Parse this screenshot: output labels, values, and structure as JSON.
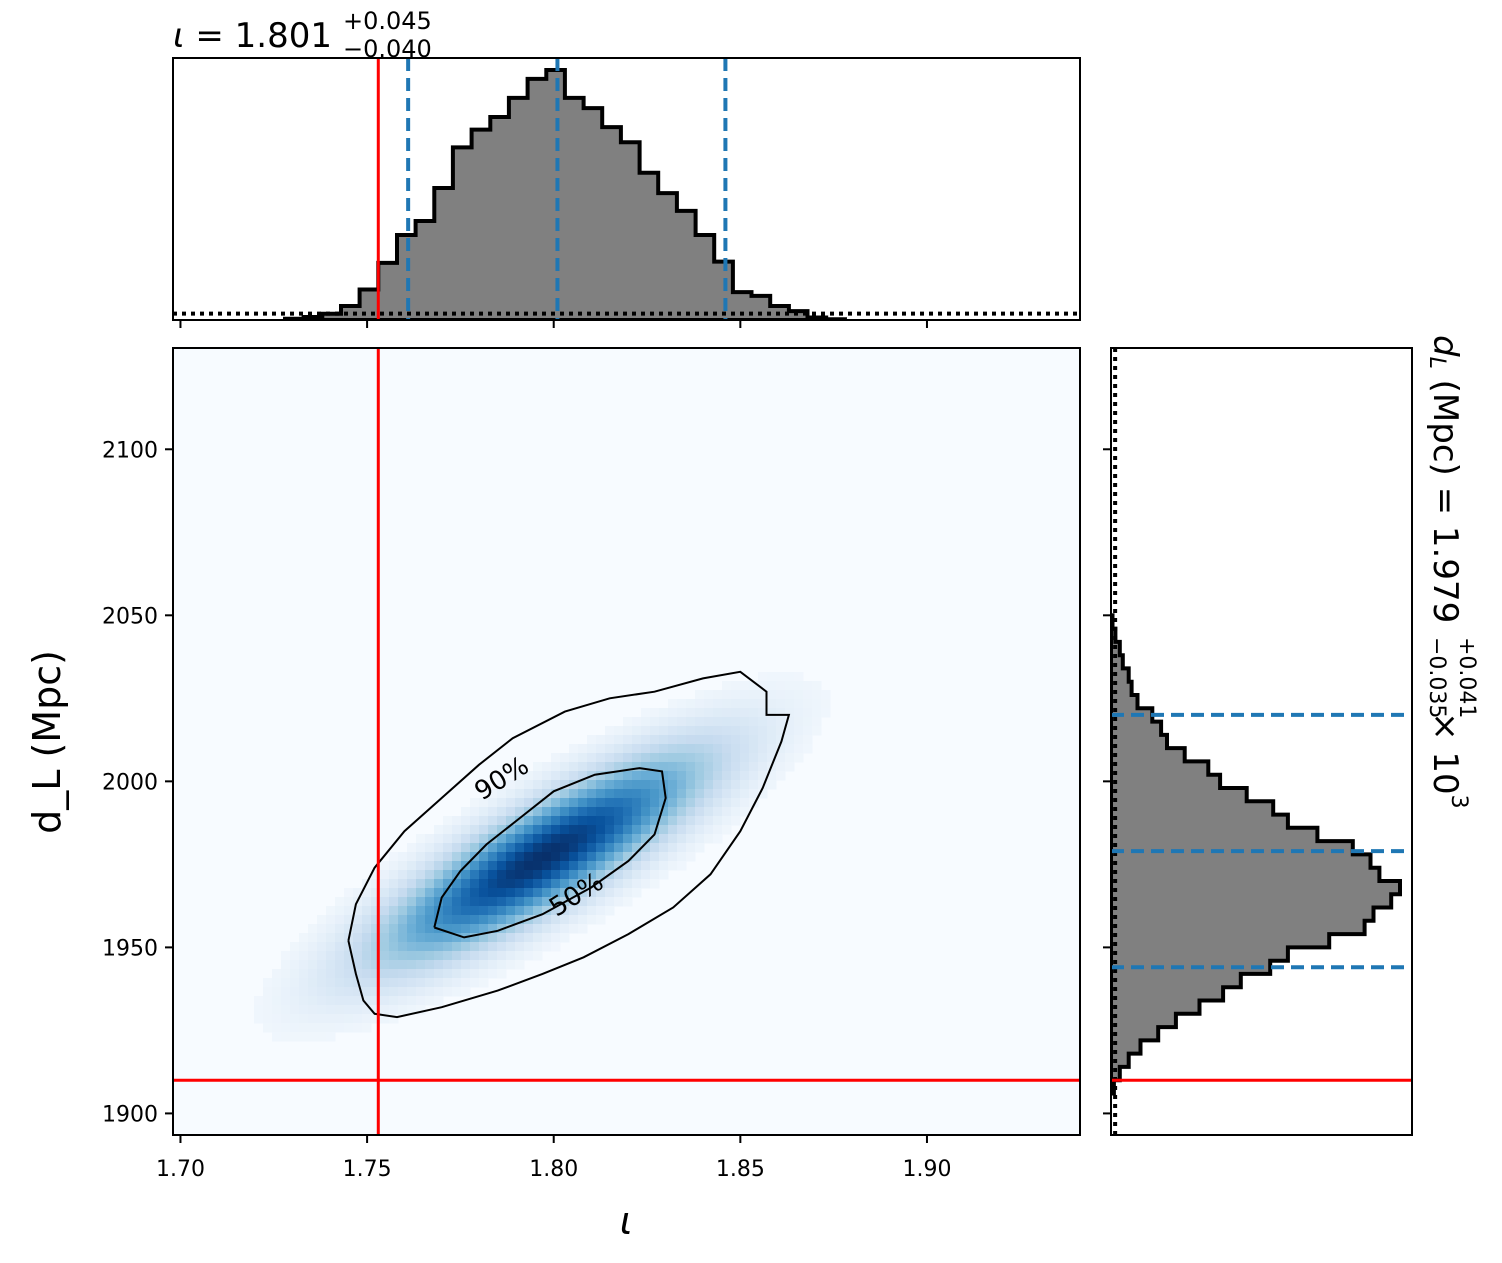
{
  "chart_data": {
    "type": "corner-plot",
    "joint": {
      "type": "heatmap",
      "x_parameter": "ι",
      "y_parameter": "d_L (Mpc)",
      "xlim": [
        1.698,
        1.941
      ],
      "ylim": [
        1893.5,
        2130.5
      ],
      "x_ticks": [
        "1.70",
        "1.75",
        "1.80",
        "1.85",
        "1.90"
      ],
      "x_tick_values": [
        1.7,
        1.75,
        1.8,
        1.85,
        1.9
      ],
      "y_ticks": [
        "1900",
        "1950",
        "2000",
        "2050",
        "2100"
      ],
      "y_tick_values": [
        1900,
        1950,
        2000,
        2050,
        2100
      ],
      "colormap": "Blues",
      "density_peak": {
        "x": 1.797,
        "y": 1977
      },
      "contours": [
        {
          "label": "90%",
          "points": [
            [
              1.745,
              1952
            ],
            [
              1.747,
              1942
            ],
            [
              1.749,
              1934
            ],
            [
              1.752,
              1930
            ],
            [
              1.758,
              1929
            ],
            [
              1.77,
              1932
            ],
            [
              1.785,
              1937
            ],
            [
              1.797,
              1942
            ],
            [
              1.808,
              1947
            ],
            [
              1.82,
              1954
            ],
            [
              1.832,
              1962
            ],
            [
              1.842,
              1972
            ],
            [
              1.85,
              1985
            ],
            [
              1.856,
              1998
            ],
            [
              1.861,
              2012
            ],
            [
              1.863,
              2020
            ],
            [
              1.857,
              2020
            ],
            [
              1.857,
              2027
            ],
            [
              1.85,
              2033
            ],
            [
              1.84,
              2031
            ],
            [
              1.827,
              2027
            ],
            [
              1.815,
              2025
            ],
            [
              1.803,
              2021
            ],
            [
              1.789,
              2013
            ],
            [
              1.78,
              2005
            ],
            [
              1.77,
              1995
            ],
            [
              1.76,
              1985
            ],
            [
              1.752,
              1974
            ],
            [
              1.747,
              1963
            ],
            [
              1.745,
              1952
            ]
          ],
          "label_at": {
            "x": 1.786,
            "y": 2001,
            "rotation_deg": -32
          }
        },
        {
          "label": "50%",
          "points": [
            [
              1.768,
              1956
            ],
            [
              1.77,
              1965
            ],
            [
              1.775,
              1973
            ],
            [
              1.782,
              1981
            ],
            [
              1.791,
              1989
            ],
            [
              1.8,
              1997
            ],
            [
              1.811,
              2002
            ],
            [
              1.823,
              2004
            ],
            [
              1.829,
              2003
            ],
            [
              1.83,
              1995
            ],
            [
              1.827,
              1984
            ],
            [
              1.82,
              1976
            ],
            [
              1.81,
              1968
            ],
            [
              1.797,
              1960
            ],
            [
              1.785,
              1955
            ],
            [
              1.776,
              1953
            ],
            [
              1.768,
              1956
            ]
          ],
          "label_at": {
            "x": 1.806,
            "y": 1966,
            "rotation_deg": -32
          }
        }
      ],
      "truth": {
        "x": 1.753,
        "y": 1910,
        "color": "#ff0000"
      }
    },
    "marginal_x": {
      "type": "histogram",
      "title": "ι = 1.801",
      "title_parts": {
        "symbol": "ι",
        "equals": " = ",
        "median": "1.801",
        "plus": "+0.045",
        "minus": "−0.040"
      },
      "bin_edges": [
        1.728,
        1.733,
        1.738,
        1.743,
        1.748,
        1.753,
        1.758,
        1.763,
        1.768,
        1.773,
        1.778,
        1.783,
        1.788,
        1.793,
        1.798,
        1.803,
        1.808,
        1.813,
        1.818,
        1.823,
        1.828,
        1.833,
        1.838,
        1.843,
        1.848,
        1.853,
        1.858,
        1.863,
        1.868,
        1.873,
        1.878
      ],
      "counts": [
        0.005,
        0.012,
        0.025,
        0.055,
        0.12,
        0.225,
        0.335,
        0.39,
        0.52,
        0.68,
        0.75,
        0.8,
        0.875,
        0.95,
        0.985,
        0.875,
        0.835,
        0.76,
        0.7,
        0.58,
        0.5,
        0.43,
        0.335,
        0.23,
        0.11,
        0.095,
        0.055,
        0.035,
        0.01,
        0.003
      ],
      "prior_level": 0.025,
      "quantile_lines": [
        1.761,
        1.801,
        1.846
      ],
      "truth": 1.753,
      "hist_color": "#808080",
      "quantile_color": "#1f77b4"
    },
    "marginal_y": {
      "type": "histogram",
      "orientation": "horizontal",
      "label": "d_L (Mpc) = 1.979 × 10³",
      "label_parts": {
        "symbol_d": "d",
        "symbol_sub": "L",
        "unit": " (Mpc) = ",
        "median": "1.979",
        "plus": "+0.041",
        "minus": "−0.035",
        "suffix": " × 10",
        "exponent": "3"
      },
      "bin_edges": [
        1906,
        1910,
        1914,
        1918,
        1922,
        1926,
        1930,
        1934,
        1938,
        1942,
        1946,
        1950,
        1954,
        1958,
        1962,
        1966,
        1970,
        1974,
        1978,
        1982,
        1986,
        1990,
        1994,
        1998,
        2002,
        2006,
        2010,
        2014,
        2018,
        2022,
        2026,
        2030,
        2034,
        2038,
        2042,
        2046,
        2050
      ],
      "counts": [
        0.01,
        0.03,
        0.06,
        0.1,
        0.16,
        0.22,
        0.3,
        0.38,
        0.44,
        0.54,
        0.6,
        0.74,
        0.86,
        0.89,
        0.95,
        0.98,
        0.91,
        0.88,
        0.82,
        0.7,
        0.6,
        0.55,
        0.46,
        0.37,
        0.33,
        0.25,
        0.19,
        0.17,
        0.14,
        0.09,
        0.07,
        0.06,
        0.04,
        0.03,
        0.015,
        0.005
      ],
      "prior_level": 0.014,
      "quantile_lines": [
        1944,
        1979,
        2020
      ],
      "truth": 1910,
      "hist_color": "#808080",
      "quantile_color": "#1f77b4"
    }
  }
}
